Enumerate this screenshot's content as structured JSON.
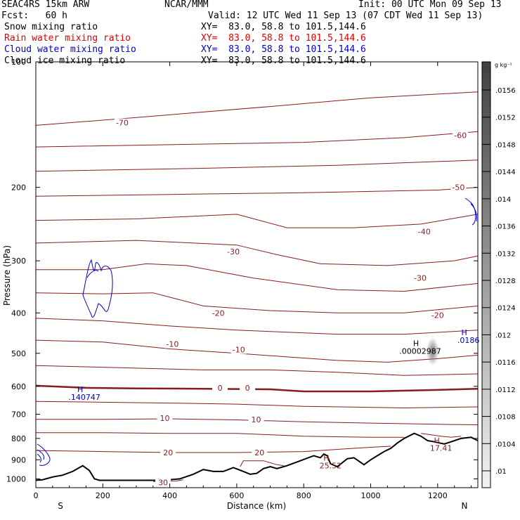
{
  "header": {
    "model": "SEAC4RS 15km ARW",
    "org": "NCAR/MMM",
    "init": "Init: 00 UTC Mon 09 Sep 13",
    "fcst": "Fcst:   60 h",
    "valid": "Valid: 12 UTC Wed 11 Sep 13 (07 CDT Wed 11 Sep 13)",
    "fields": [
      {
        "name": "Snow mixing ratio",
        "xy": "XY=  83.0, 58.8 to 101.5,144.6",
        "color": "#000000"
      },
      {
        "name": "Rain water mixing ratio",
        "xy": "XY=  83.0, 58.8 to 101.5,144.6",
        "color": "#e00000"
      },
      {
        "name": "Cloud water mixing ratio",
        "xy": "XY=  83.0, 58.8 to 101.5,144.6",
        "color": "#0000cc"
      },
      {
        "name": "Cloud ice mixing ratio",
        "xy": "XY=  83.0, 58.8 to 101.5,144.6",
        "color": "#000000"
      }
    ]
  },
  "chart_data": {
    "type": "cross-section",
    "xlabel": "Distance (km)",
    "ylabel": "Pressure (hPa)",
    "xlim": [
      0,
      1320
    ],
    "ylim": [
      1050,
      100
    ],
    "y_scale": "log",
    "x_ticks": [
      0,
      200,
      400,
      600,
      800,
      1000,
      1200
    ],
    "y_ticks": [
      100,
      200,
      300,
      400,
      500,
      600,
      700,
      800,
      900,
      1000
    ],
    "x_end_labels": {
      "left": "S",
      "right": "N"
    },
    "colorbar": {
      "unit": "g kg⁻¹",
      "ticks": [
        ".0156",
        ".0152",
        ".0148",
        ".0144",
        ".014",
        ".0136",
        ".0132",
        ".0128",
        ".0124",
        ".012",
        ".0116",
        ".0112",
        ".0108",
        ".0104",
        ".01"
      ]
    },
    "isotherm_color": "#8b1a1a",
    "isotherm_labels": [
      {
        "text": "-70",
        "x": 258,
        "p": 140
      },
      {
        "text": "-60",
        "x": 1268,
        "p": 150
      },
      {
        "text": "-50",
        "x": 1262,
        "p": 200
      },
      {
        "text": "-40",
        "x": 1160,
        "p": 255
      },
      {
        "text": "-30",
        "x": 590,
        "p": 285
      },
      {
        "text": "-30",
        "x": 1148,
        "p": 330
      },
      {
        "text": "-20",
        "x": 545,
        "p": 400
      },
      {
        "text": "-20",
        "x": 1200,
        "p": 405
      },
      {
        "text": "-10",
        "x": 408,
        "p": 475
      },
      {
        "text": "-10",
        "x": 606,
        "p": 490
      },
      {
        "text": "0",
        "x": 550,
        "p": 605
      },
      {
        "text": "0",
        "x": 632,
        "p": 605
      },
      {
        "text": "10",
        "x": 385,
        "p": 715
      },
      {
        "text": "10",
        "x": 658,
        "p": 720
      },
      {
        "text": "20",
        "x": 395,
        "p": 865
      },
      {
        "text": "20",
        "x": 668,
        "p": 865
      },
      {
        "text": "30",
        "x": 380,
        "p": 1020
      }
    ],
    "extrema": [
      {
        "label": "H",
        "value": ".140747",
        "x": 145,
        "p": 620,
        "color": "#0000cc"
      },
      {
        "label": "H",
        "value": ".00002987",
        "x": 1148,
        "p": 480,
        "color": "#000000"
      },
      {
        "label": "H",
        "value": ".0186",
        "x": 1292,
        "p": 452,
        "color": "#0000cc"
      },
      {
        "label": "H",
        "value": "25.52",
        "x": 880,
        "p": 905,
        "color": "#8b1a1a"
      },
      {
        "label": "H",
        "value": "17.41",
        "x": 1210,
        "p": 820,
        "color": "#8b1a1a"
      }
    ],
    "terrain": [
      [
        0,
        1008
      ],
      [
        20,
        1005
      ],
      [
        50,
        990
      ],
      [
        80,
        980
      ],
      [
        110,
        960
      ],
      [
        140,
        930
      ],
      [
        160,
        955
      ],
      [
        175,
        1000
      ],
      [
        190,
        1008
      ],
      [
        380,
        1008
      ],
      [
        430,
        1000
      ],
      [
        470,
        975
      ],
      [
        500,
        950
      ],
      [
        530,
        960
      ],
      [
        560,
        960
      ],
      [
        590,
        940
      ],
      [
        620,
        960
      ],
      [
        640,
        975
      ],
      [
        660,
        970
      ],
      [
        680,
        945
      ],
      [
        700,
        935
      ],
      [
        720,
        945
      ],
      [
        750,
        930
      ],
      [
        790,
        905
      ],
      [
        830,
        880
      ],
      [
        850,
        890
      ],
      [
        860,
        872
      ],
      [
        870,
        880
      ],
      [
        880,
        920
      ],
      [
        900,
        935
      ],
      [
        930,
        895
      ],
      [
        950,
        890
      ],
      [
        980,
        925
      ],
      [
        1000,
        900
      ],
      [
        1020,
        880
      ],
      [
        1040,
        860
      ],
      [
        1060,
        845
      ],
      [
        1080,
        820
      ],
      [
        1100,
        800
      ],
      [
        1130,
        778
      ],
      [
        1150,
        790
      ],
      [
        1170,
        810
      ],
      [
        1190,
        815
      ],
      [
        1220,
        825
      ],
      [
        1240,
        815
      ],
      [
        1270,
        800
      ],
      [
        1300,
        795
      ],
      [
        1320,
        810
      ]
    ]
  }
}
